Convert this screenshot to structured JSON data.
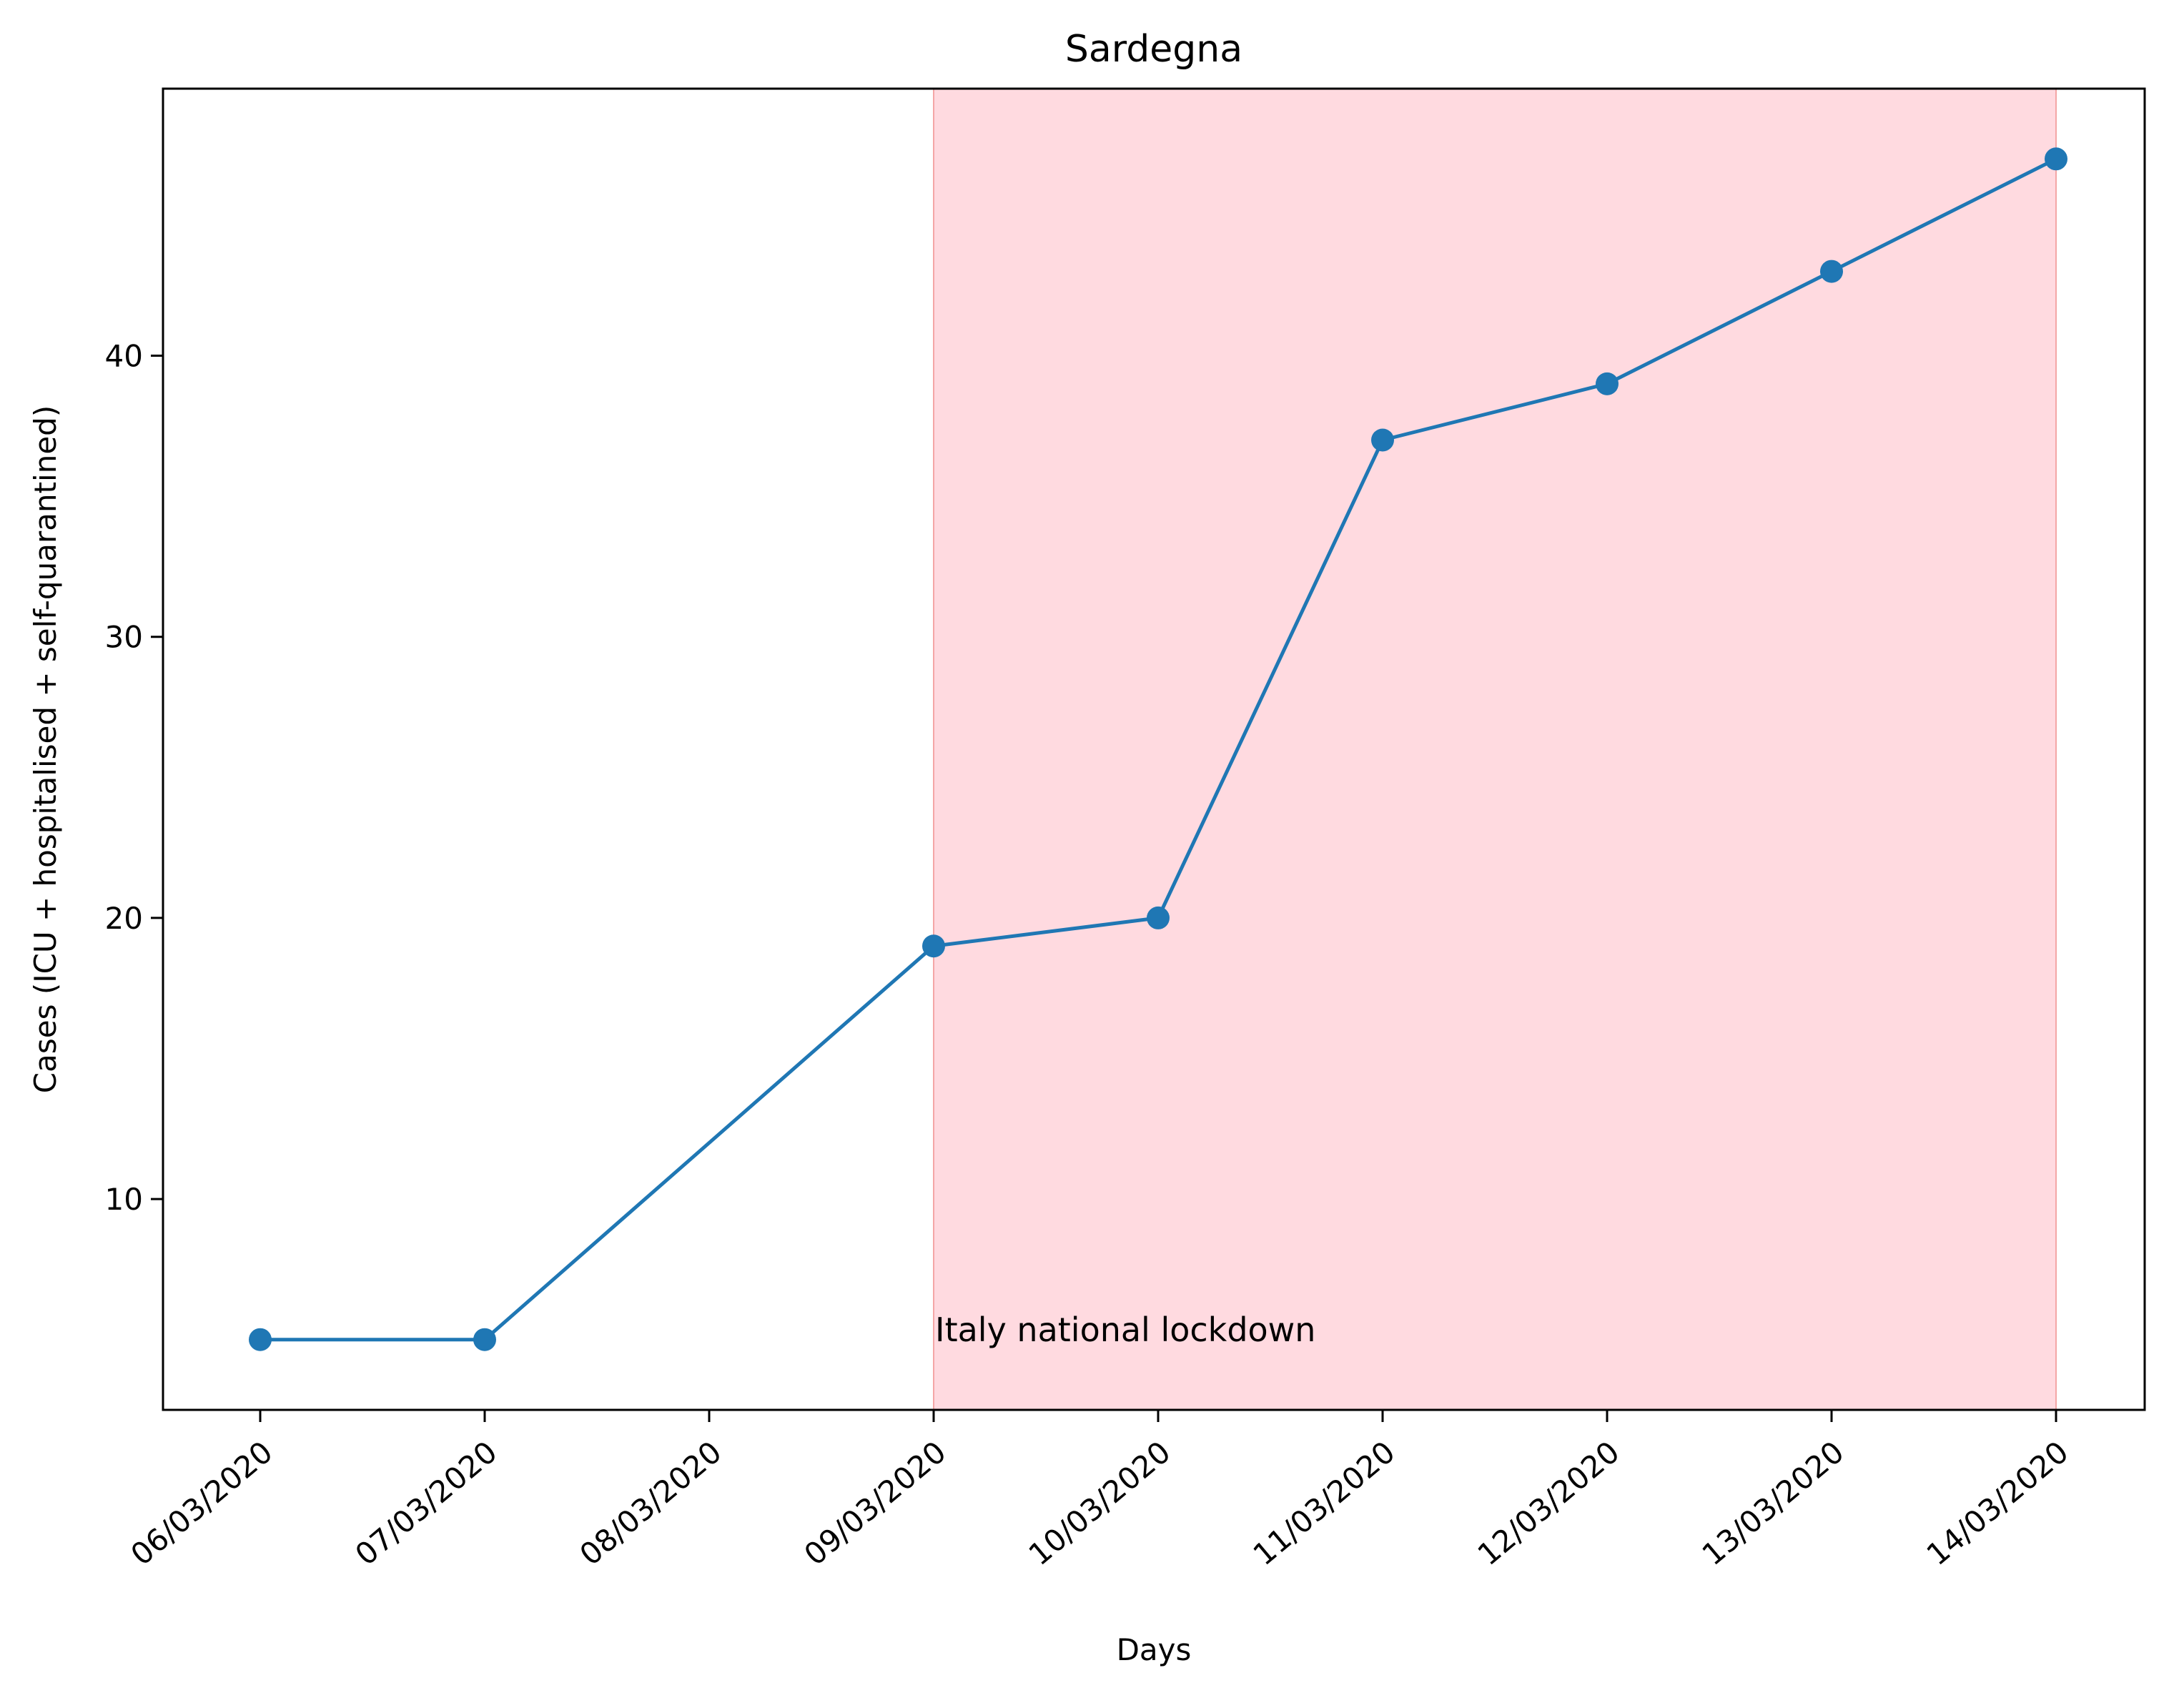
{
  "chart_data": {
    "type": "line",
    "title": "Sardegna",
    "xlabel": "Days",
    "ylabel": "Cases (ICU + hospitalised + self-quarantined)",
    "categories": [
      "06/03/2020",
      "07/03/2020",
      "08/03/2020",
      "09/03/2020",
      "10/03/2020",
      "11/03/2020",
      "12/03/2020",
      "13/03/2020",
      "14/03/2020"
    ],
    "series": [
      {
        "x": [
          "06/03/2020",
          "07/03/2020",
          "09/03/2020",
          "10/03/2020",
          "11/03/2020",
          "12/03/2020",
          "13/03/2020",
          "14/03/2020"
        ],
        "values": [
          5,
          5,
          19,
          20,
          37,
          39,
          43,
          47
        ]
      }
    ],
    "yticks": [
      10,
      20,
      30,
      40
    ],
    "ylim": [
      2.5,
      49.5
    ],
    "grid": false,
    "shaded_region": {
      "start": "09/03/2020",
      "end": "14/03/2020",
      "label": "Italy national lockdown"
    },
    "colors": {
      "line": "#1f77b4",
      "marker": "#1f77b4",
      "shade": "#ffb6c1",
      "axis": "#000000"
    }
  }
}
